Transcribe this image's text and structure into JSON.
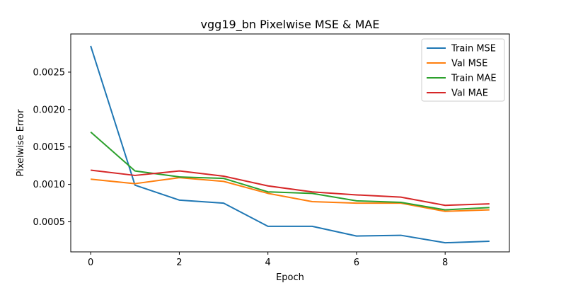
{
  "chart_data": {
    "type": "line",
    "title": "vgg19_bn Pixelwise MSE & MAE",
    "xlabel": "Epoch",
    "ylabel": "Pixelwise Error",
    "x": [
      0,
      1,
      2,
      3,
      4,
      5,
      6,
      7,
      8,
      9
    ],
    "xlim": [
      -0.45,
      9.45
    ],
    "ylim": [
      9.85e-05,
      0.00301
    ],
    "x_ticks": [
      0,
      2,
      4,
      6,
      8
    ],
    "x_tick_labels": [
      "0",
      "2",
      "4",
      "6",
      "8"
    ],
    "y_ticks": [
      0.0005,
      0.001,
      0.0015,
      0.002,
      0.0025
    ],
    "y_tick_labels": [
      "0.0005",
      "0.0010",
      "0.0015",
      "0.0020",
      "0.0025"
    ],
    "grid": false,
    "legend_position": "top-right",
    "series": [
      {
        "name": "Train MSE",
        "color": "#1f77b4",
        "values": [
          0.00285,
          0.00099,
          0.00079,
          0.00075,
          0.00044,
          0.00044,
          0.00031,
          0.00032,
          0.00022,
          0.00024
        ]
      },
      {
        "name": "Val MSE",
        "color": "#ff7f0e",
        "values": [
          0.00107,
          0.00101,
          0.00109,
          0.00104,
          0.00088,
          0.00077,
          0.00075,
          0.00075,
          0.00064,
          0.00066
        ]
      },
      {
        "name": "Train MAE",
        "color": "#2ca02c",
        "values": [
          0.0017,
          0.00118,
          0.0011,
          0.00108,
          0.0009,
          0.00088,
          0.00078,
          0.00076,
          0.00066,
          0.00069
        ]
      },
      {
        "name": "Val MAE",
        "color": "#d62728",
        "values": [
          0.00119,
          0.00112,
          0.00118,
          0.00111,
          0.00098,
          0.0009,
          0.00086,
          0.00083,
          0.00072,
          0.00074
        ]
      }
    ]
  }
}
